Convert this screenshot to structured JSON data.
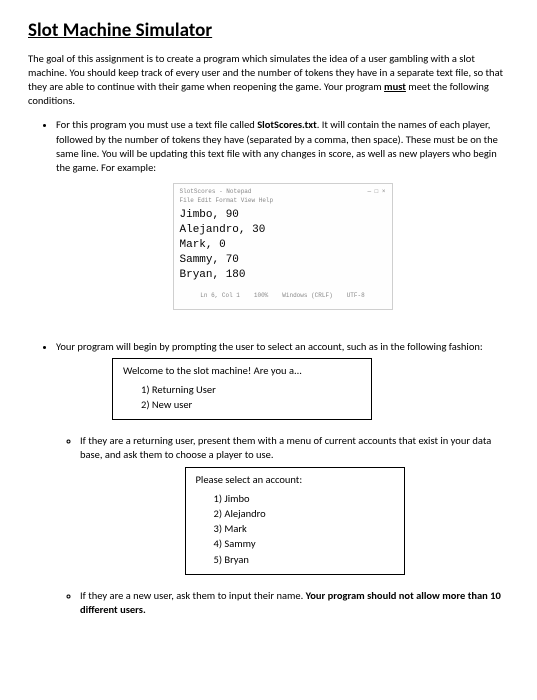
{
  "title": "Slot Machine Simulator",
  "intro_part1": "The goal of this assignment is to create a program which simulates the idea of a user gambling with a slot machine. You should keep track of every user and the number of tokens they have in a separate text file, so that they are able to continue with their game when reopening the game. Your program ",
  "intro_must": "must",
  "intro_part2": " meet the following conditions.",
  "bullet1": {
    "pre": "For this program you must use a text file called ",
    "bold": "SlotScores.txt",
    "post": ". It will contain the names of each player, followed by the number of tokens they have (separated by a comma, then space). These must be on the same line. You will be updating this text file with any changes in score, as well as new players who begin the game. For example:"
  },
  "notepad": {
    "title_left": "SlotScores - Notepad",
    "title_right": "— □ ×",
    "menubar": "File  Edit  Format  View  Help",
    "lines": [
      "Jimbo, 90",
      "Alejandro, 30",
      "Mark, 0",
      "Sammy, 70",
      "Bryan, 180"
    ],
    "status": [
      "Ln 6, Col 1",
      "100%",
      "Windows (CRLF)",
      "UTF-8"
    ]
  },
  "bullet2": "Your program will begin by prompting the user to select an account, such as in the following fashion:",
  "welcome_box": {
    "header": "Welcome to the slot machine! Are you a...",
    "opts": [
      "1)   Returning User",
      "2)   New user"
    ]
  },
  "sub1": "If they are a returning user, present them with a menu of current accounts that exist in your data base, and ask them to choose a player to use.",
  "select_box": {
    "header": "Please select an account:",
    "opts": [
      "1)   Jimbo",
      "2)   Alejandro",
      "3)   Mark",
      "4)   Sammy",
      "5)   Bryan"
    ]
  },
  "sub2": {
    "pre": "If they are a new user, ask them to input their name. ",
    "bold": "Your program should not allow more than 10 different users."
  },
  "colors": {
    "text": "#000000",
    "bg": "#ffffff",
    "border_light": "#cfcfcf"
  }
}
